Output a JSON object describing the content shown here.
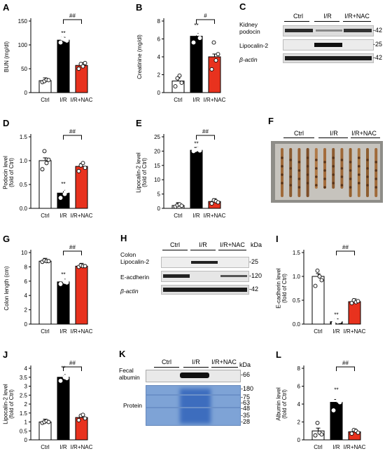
{
  "colors": {
    "ctrl": "#ffffff",
    "ir": "#000000",
    "nac": "#e8321e",
    "gel": "#5b8fd0"
  },
  "panels": [
    {
      "id": "A",
      "ylabel": "BUN (mg/dl)",
      "ticks": [
        "0",
        "50",
        "100",
        "150"
      ],
      "ymax": 150,
      "values": [
        25,
        110,
        57
      ],
      "points": [
        [
          22,
          24,
          27,
          26
        ],
        [
          105,
          113,
          111,
          109
        ],
        [
          50,
          60,
          55,
          62
        ]
      ],
      "ast": "**",
      "sig": "##"
    },
    {
      "id": "B",
      "ylabel": "Creatinine (mg/dl)",
      "ticks": [
        "0",
        "2",
        "4",
        "6",
        "8"
      ],
      "ymax": 8,
      "values": [
        1.3,
        6.3,
        4.0
      ],
      "points": [
        [
          0.7,
          1.6,
          1.9,
          1.1
        ],
        [
          5.6,
          6.6,
          6.9,
          6.1
        ],
        [
          2.6,
          5.6,
          3.6,
          4.3
        ]
      ],
      "ast": "**",
      "sig": "#"
    },
    {
      "id": "D",
      "ylabel": "Podocin level (fold of Ctrl)",
      "ticks": [
        "0.0",
        "0.5",
        "1.0",
        "1.5"
      ],
      "ymax": 1.5,
      "values": [
        1.0,
        0.32,
        0.88
      ],
      "points": [
        [
          0.82,
          1.2,
          0.95,
          1.02
        ],
        [
          0.22,
          0.4,
          0.3,
          0.36
        ],
        [
          0.78,
          0.9,
          0.95,
          0.85
        ]
      ],
      "ast": "**",
      "sig": "##"
    },
    {
      "id": "E",
      "ylabel": "Lipocalin-2 level (fold of Ctrl)",
      "ticks": [
        "0",
        "5",
        "10",
        "15",
        "20",
        "25"
      ],
      "ymax": 25,
      "values": [
        1.0,
        20.3,
        2.4
      ],
      "points": [
        [
          0.6,
          1.1,
          1.4,
          0.9
        ],
        [
          20.0,
          20.4,
          20.7,
          20.2
        ],
        [
          1.7,
          2.8,
          2.5,
          2.1
        ]
      ],
      "ast": "**",
      "sig": "##"
    },
    {
      "id": "G",
      "ylabel": "Colon length (cm)",
      "ticks": [
        "0",
        "2",
        "4",
        "6",
        "8",
        "10"
      ],
      "ymax": 10,
      "values": [
        8.8,
        5.9,
        8.1
      ],
      "points": [
        [
          8.7,
          8.9,
          8.8,
          8.8
        ],
        [
          5.6,
          6.2,
          5.9,
          5.8
        ],
        [
          8.0,
          8.2,
          8.1,
          8.1
        ]
      ],
      "ast": "**",
      "sig": "##"
    },
    {
      "id": "I",
      "ylabel": "E-cadherin level (fold of Ctrl)",
      "ticks": [
        "0.0",
        "0.5",
        "1.0",
        "1.5"
      ],
      "ymax": 1.5,
      "values": [
        1.0,
        0.05,
        0.47
      ],
      "points": [
        [
          0.8,
          1.12,
          1.0,
          0.92
        ],
        [
          0.02,
          0.08,
          0.05,
          0.06
        ],
        [
          0.44,
          0.5,
          0.46,
          0.48
        ]
      ],
      "ast": "**",
      "sig": "##"
    },
    {
      "id": "J",
      "ylabel": "Lipocalin-2 level (fold of Ctrl)",
      "ticks": [
        "0",
        "0.5",
        "1",
        "1.5",
        "2",
        "2.5",
        "3",
        "3.5",
        "4"
      ],
      "ymax": 4,
      "values": [
        1.0,
        3.5,
        1.25
      ],
      "points": [
        [
          0.95,
          1.0,
          1.05,
          1.0
        ],
        [
          3.3,
          3.7,
          3.5,
          3.45
        ],
        [
          1.1,
          1.35,
          1.4,
          1.2
        ]
      ],
      "ast": "**",
      "sig": "##"
    },
    {
      "id": "L",
      "ylabel": "Albumin level (fold of Ctrl)",
      "ticks": [
        "0",
        "2",
        "4",
        "6",
        "8"
      ],
      "ymax": 8,
      "values": [
        1.0,
        4.2,
        0.9
      ],
      "points": [
        [
          0.5,
          1.9,
          0.8,
          0.6
        ],
        [
          3.3,
          5.0,
          4.4,
          4.2
        ],
        [
          0.7,
          1.1,
          1.0,
          0.8
        ]
      ],
      "ast": "**",
      "sig": "##"
    }
  ],
  "groups": [
    "Ctrl",
    "I/R",
    "I/R+NAC"
  ],
  "blot_C": {
    "label": "C",
    "rows": [
      "Kidney podocin",
      "Lipocalin-2",
      "β-actin"
    ],
    "mw": [
      "-42",
      "-25",
      "-42"
    ],
    "groups": [
      "Ctrl",
      "I/R",
      "I/R+NAC"
    ]
  },
  "photo_F": {
    "label": "F",
    "groups": [
      "Ctrl",
      "I/R",
      "I/R+NAC"
    ]
  },
  "blot_H": {
    "label": "H",
    "rows": [
      "Colon Lipocalin-2",
      "E-acdherin",
      "β-actin"
    ],
    "mw": [
      "-25",
      "-120",
      "-42"
    ],
    "groups": [
      "Ctrl",
      "I/R",
      "I/R+NAC"
    ],
    "kda": "kDa"
  },
  "blot_K": {
    "label": "K",
    "rows": [
      "Fecal albumin",
      "Protein"
    ],
    "mw": [
      "-66",
      "-180",
      "-75",
      "-63",
      "-48",
      "-35",
      "-28"
    ],
    "groups": [
      "Ctrl",
      "I/R",
      "I/R+NAC"
    ],
    "kda": "kDa"
  }
}
